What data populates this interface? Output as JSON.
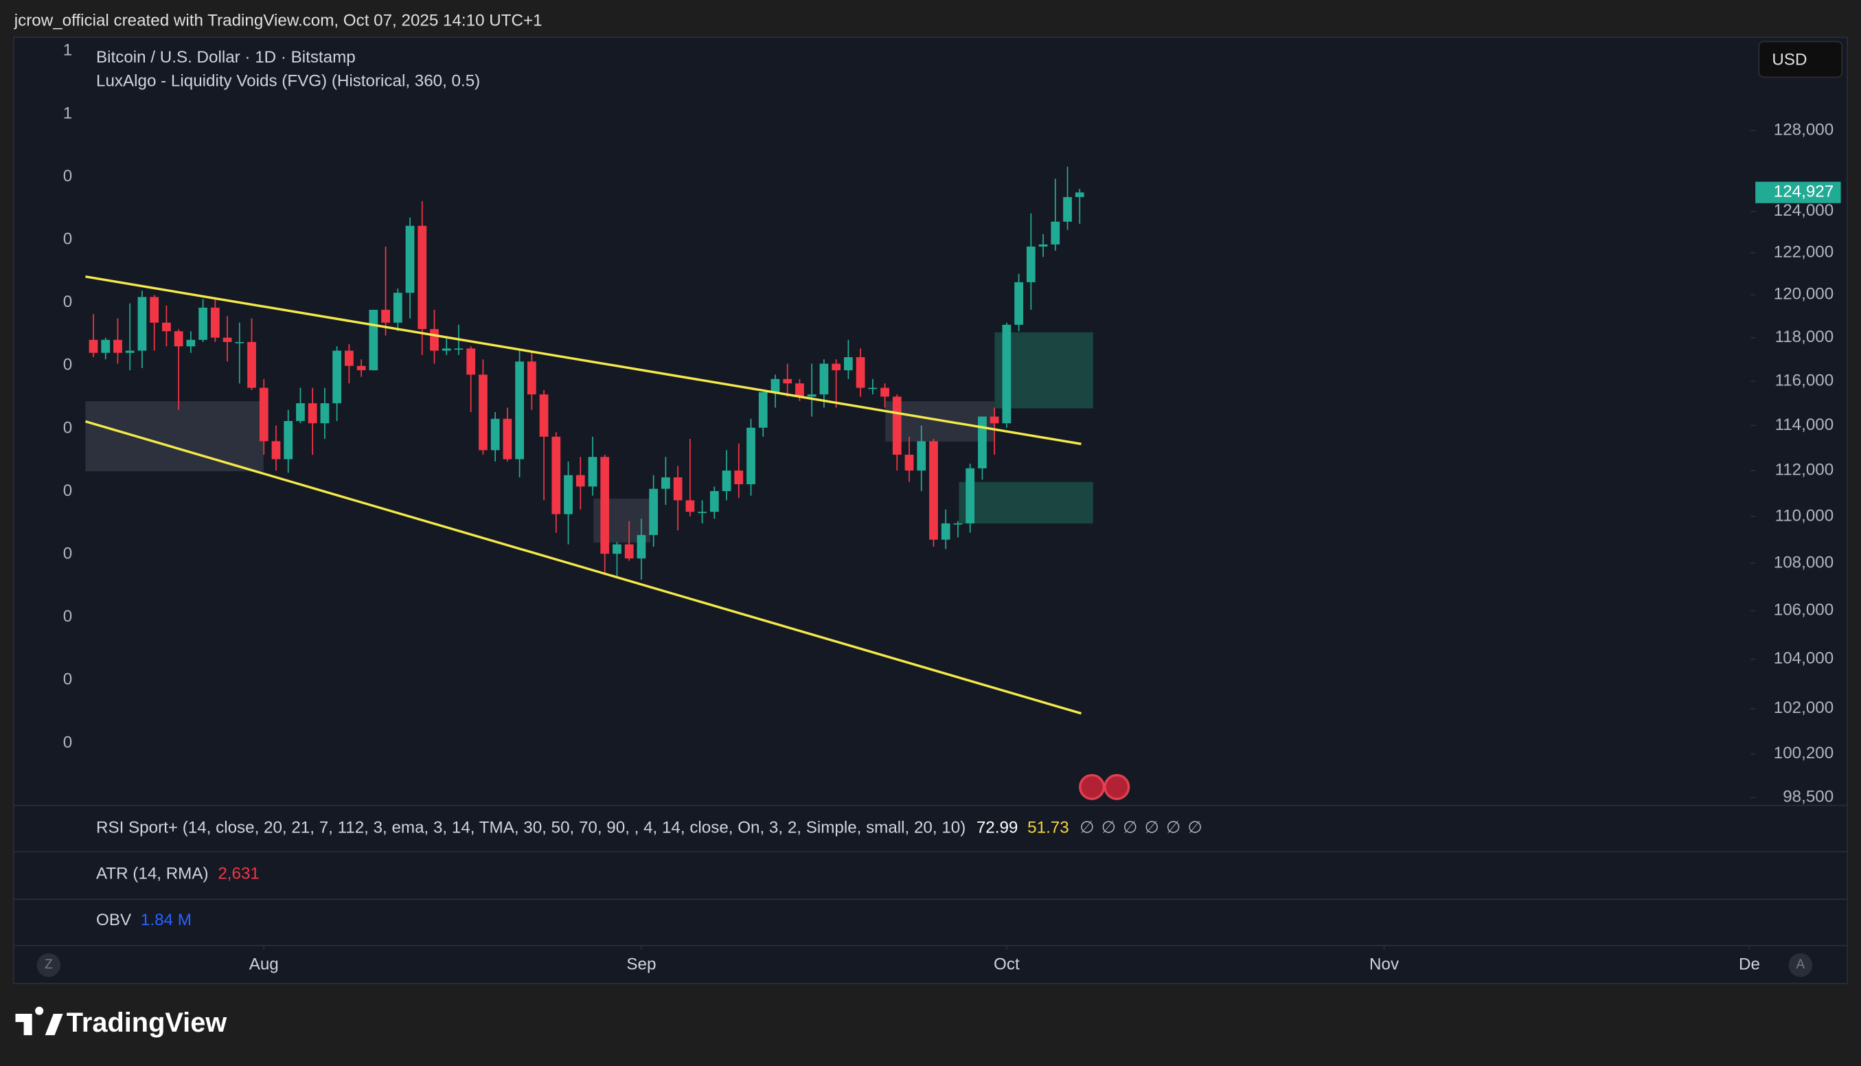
{
  "header": {
    "attribution": "jcrow_official created with TradingView.com, Oct 07, 2025 14:10 UTC+1"
  },
  "legend": {
    "symbol": "Bitcoin / U.S. Dollar · 1D · Bitstamp",
    "indicator": "LuxAlgo - Liquidity Voids (FVG) (Historical, 360, 0.5)"
  },
  "currency_button": "USD",
  "left_scale_labels": [
    "1",
    "1",
    "0",
    "0",
    "0",
    "0",
    "0",
    "0",
    "0",
    "0",
    "0",
    "0"
  ],
  "chart_data": {
    "type": "candlestick",
    "y_scale": "log",
    "grid": false,
    "up_color": "#22ab94",
    "down_color": "#f23645",
    "open": [
      117900,
      117300,
      117900,
      117300,
      117400,
      119900,
      118700,
      118300,
      117600,
      117900,
      119400,
      118000,
      117800,
      117800,
      115700,
      113300,
      112500,
      114200,
      115000,
      114100,
      115000,
      117400,
      116700,
      116500,
      119300,
      118700,
      120100,
      123300,
      118400,
      117400,
      117500,
      117500,
      116300,
      112900,
      114300,
      112500,
      116900,
      115400,
      113500,
      110100,
      111800,
      111300,
      112600,
      108400,
      108800,
      108200,
      109200,
      111200,
      111700,
      110700,
      110200,
      110200,
      111100,
      112000,
      111400,
      113900,
      115500,
      116100,
      115900,
      115300,
      115400,
      116800,
      116500,
      117100,
      115700,
      115700,
      115300,
      112700,
      112000,
      113300,
      109000,
      109700,
      109700,
      112100,
      114400,
      114100,
      118600,
      120600,
      122300,
      122400,
      123500,
      124700
    ],
    "high": [
      119100,
      118000,
      118900,
      119600,
      120200,
      120000,
      119500,
      118400,
      118300,
      119800,
      119800,
      119000,
      118700,
      118900,
      116100,
      114000,
      114700,
      115700,
      115700,
      115700,
      117600,
      117700,
      117000,
      119300,
      122300,
      120300,
      123700,
      124500,
      119300,
      118000,
      118600,
      117600,
      117000,
      114600,
      114800,
      117400,
      117400,
      115600,
      113700,
      112400,
      112600,
      113500,
      112700,
      108900,
      109800,
      109900,
      111800,
      112600,
      112200,
      113400,
      110700,
      111300,
      112900,
      113200,
      114300,
      115500,
      116300,
      116800,
      116100,
      116800,
      117000,
      117000,
      117900,
      117500,
      116100,
      115900,
      115400,
      113500,
      114000,
      113400,
      110300,
      109800,
      112300,
      114400,
      114800,
      118700,
      121000,
      123900,
      122900,
      125600,
      126200,
      125100
    ],
    "low": [
      117100,
      117000,
      116800,
      116500,
      116600,
      117400,
      117600,
      114700,
      117300,
      117800,
      117800,
      116900,
      115900,
      115600,
      112700,
      112000,
      111900,
      114100,
      112700,
      113400,
      114200,
      115900,
      116200,
      116500,
      118100,
      118300,
      118900,
      117200,
      116800,
      117200,
      117200,
      114600,
      112700,
      112400,
      112400,
      111700,
      114700,
      110700,
      109300,
      108800,
      110300,
      110900,
      107500,
      107400,
      108100,
      107300,
      108700,
      110500,
      109400,
      110000,
      109700,
      109900,
      110700,
      110800,
      110900,
      113500,
      114800,
      115300,
      115100,
      114400,
      114800,
      114800,
      116100,
      115300,
      115400,
      114800,
      112000,
      111500,
      111100,
      108700,
      108600,
      109100,
      109300,
      111600,
      112700,
      113900,
      118300,
      119300,
      121800,
      122100,
      123100,
      123400
    ],
    "close": [
      117300,
      117900,
      117300,
      117400,
      119900,
      118700,
      118300,
      117600,
      117900,
      119400,
      118000,
      117800,
      117800,
      115700,
      113300,
      112500,
      114200,
      115000,
      114100,
      115000,
      117400,
      116700,
      116500,
      119300,
      118700,
      120100,
      123300,
      118400,
      117400,
      117500,
      117500,
      116300,
      112900,
      114300,
      112500,
      116900,
      115400,
      113500,
      110100,
      111800,
      111300,
      112600,
      108400,
      108800,
      108200,
      109200,
      111200,
      111700,
      110700,
      110200,
      110200,
      111100,
      112000,
      111400,
      113900,
      115500,
      116100,
      115900,
      115300,
      115400,
      116800,
      116500,
      117100,
      115700,
      115700,
      115300,
      112700,
      112000,
      113300,
      109000,
      109700,
      109700,
      112100,
      114400,
      114100,
      118600,
      120600,
      122300,
      122400,
      123500,
      124700,
      124927
    ],
    "last_price_label": "124,927",
    "ylim": [
      98220,
      132740
    ],
    "yticks": [
      {
        "value": 128000,
        "label": "128,000"
      },
      {
        "value": 124000,
        "label": "124,000"
      },
      {
        "value": 122000,
        "label": "122,000"
      },
      {
        "value": 120000,
        "label": "120,000"
      },
      {
        "value": 118000,
        "label": "118,000"
      },
      {
        "value": 116000,
        "label": "116,000"
      },
      {
        "value": 114000,
        "label": "114,000"
      },
      {
        "value": 112000,
        "label": "112,000"
      },
      {
        "value": 110000,
        "label": "110,000"
      },
      {
        "value": 108000,
        "label": "108,000"
      },
      {
        "value": 106000,
        "label": "106,000"
      },
      {
        "value": 104000,
        "label": "104,000"
      },
      {
        "value": 102000,
        "label": "102,000"
      },
      {
        "value": 100200,
        "label": "100,200"
      },
      {
        "value": 98500,
        "label": "98,500"
      }
    ],
    "xlim": [
      -6.5,
      136.1
    ],
    "xticks": [
      {
        "value": 14,
        "label": "Aug"
      },
      {
        "value": 45,
        "label": "Sep"
      },
      {
        "value": 75,
        "label": "Oct"
      },
      {
        "value": 106,
        "label": "Nov"
      },
      {
        "value": 136,
        "label": "De"
      }
    ]
  },
  "panes": {
    "rsi": {
      "label": "RSI Sport+ (14, close, 20, 21, 7, 112, 3, ema, 3, 14, TMA, 30, 50, 70, 90, , 4, 14, close, On, 3, 2, Simple, small, 20, 10)",
      "value_1": "72.99",
      "value_2": "51.73",
      "symbols": [
        "∅",
        "∅",
        "∅",
        "∅",
        "∅",
        "∅"
      ]
    },
    "atr": {
      "label": "ATR (14, RMA)",
      "value": "2,631"
    },
    "obv": {
      "label": "OBV",
      "value": "1.84 M"
    }
  },
  "time_axis_buttons": [
    "Z",
    "A"
  ],
  "footer": {
    "logo": "TradingView"
  }
}
